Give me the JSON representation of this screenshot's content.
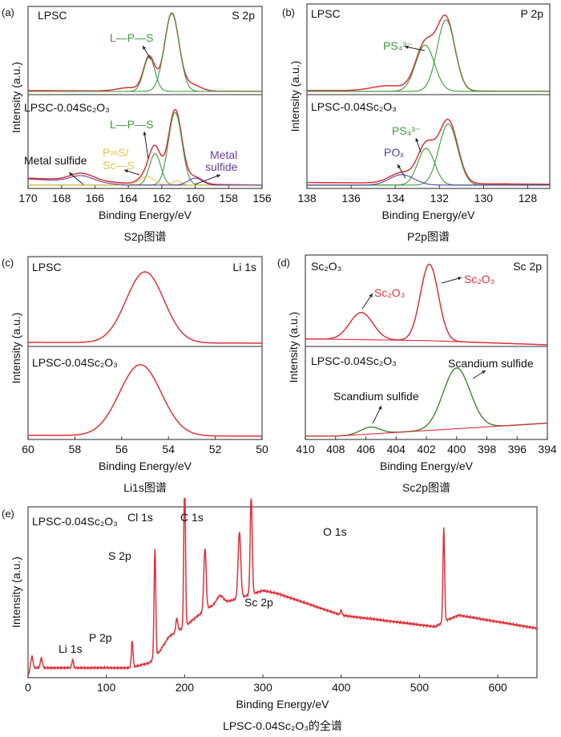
{
  "colors": {
    "fit": "#e0303a",
    "component": "#3d9a3d",
    "p_s": "#e3c54a",
    "metal_sulfide": "#6a3d9a",
    "pox": "#4a4aa0",
    "text": "#111111",
    "frame": "#555555"
  },
  "chart_data": [
    {
      "panel": "(a)",
      "type": "line",
      "xlabel": "Binding Energy/eV",
      "ylabel": "Intensity (a.u.)",
      "caption": "S2p图谱",
      "xlim": [
        170,
        156
      ],
      "xticks": [
        170,
        168,
        166,
        164,
        162,
        160,
        158,
        156
      ],
      "grid": false,
      "subplots": [
        {
          "sample": "LPSC",
          "region": "S 2p",
          "annotations": [
            {
              "text": "L—P—S",
              "color": "#3d9a3d"
            }
          ],
          "curves": [
            {
              "role": "envelope",
              "color": "#e0303a",
              "baseline": [
                [
                  170,
                  0.03
                ],
                [
                  156,
                  0.02
                ]
              ],
              "peaks": [
                [
                  161.4,
                  0.95,
                  1.0
                ],
                [
                  162.75,
                  0.42,
                  0.8
                ],
                [
                  160.2,
                  0.08,
                  1.2
                ],
                [
                  164,
                  0.04,
                  1.5
                ]
              ]
            },
            {
              "role": "component",
              "color": "#3d9a3d",
              "baseline": [
                [
                  170,
                  0.02
                ],
                [
                  156,
                  0.02
                ]
              ],
              "peaks": [
                [
                  161.4,
                  0.95,
                  1.05
                ]
              ]
            },
            {
              "role": "component",
              "color": "#3d9a3d",
              "baseline": [
                [
                  170,
                  0.02
                ],
                [
                  156,
                  0.02
                ]
              ],
              "peaks": [
                [
                  162.75,
                  0.42,
                  0.8
                ]
              ]
            }
          ]
        },
        {
          "sample": "LPSC-0.04Sc₂O₃",
          "region": "",
          "annotations": [
            {
              "text": "L—P—S",
              "color": "#3d9a3d"
            },
            {
              "text": "P═S/",
              "color": "#e3c54a"
            },
            {
              "text": "Sc—S",
              "color": "#e3c54a"
            },
            {
              "text": "Metal sulfide",
              "color": "#111111"
            },
            {
              "text": "Metal",
              "color": "#6a3d9a"
            },
            {
              "text": "sulfide",
              "color": "#6a3d9a"
            }
          ],
          "curves": [
            {
              "role": "envelope",
              "color": "#e0303a",
              "baseline": [
                [
                  170,
                  0.1
                ],
                [
                  166,
                  0.07
                ],
                [
                  164,
                  0.04
                ],
                [
                  156,
                  0.02
                ]
              ],
              "peaks": [
                [
                  161.2,
                  0.85,
                  0.95
                ],
                [
                  162.4,
                  0.38,
                  0.8
                ],
                [
                  162.9,
                  0.1,
                  1.0
                ],
                [
                  160,
                  0.08,
                  1.0
                ],
                [
                  166.8,
                  0.08,
                  1.6
                ]
              ]
            },
            {
              "role": "component",
              "color": "#3d9a3d",
              "baseline": [
                [
                  170,
                  0.02
                ],
                [
                  156,
                  0.02
                ]
              ],
              "peaks": [
                [
                  161.2,
                  0.83,
                  0.95
                ]
              ]
            },
            {
              "role": "component",
              "color": "#3d9a3d",
              "baseline": [
                [
                  170,
                  0.02
                ],
                [
                  156,
                  0.02
                ]
              ],
              "peaks": [
                [
                  162.4,
                  0.36,
                  0.8
                ]
              ]
            },
            {
              "role": "component",
              "color": "#e3c54a",
              "baseline": [
                [
                  170,
                  0.02
                ],
                [
                  156,
                  0.02
                ]
              ],
              "peaks": [
                [
                  162.9,
                  0.1,
                  1.0
                ],
                [
                  161.1,
                  0.05,
                  0.6
                ]
              ]
            },
            {
              "role": "component",
              "color": "#6a3d9a",
              "baseline": [
                [
                  170,
                  0.09
                ],
                [
                  166,
                  0.05
                ],
                [
                  164,
                  0.02
                ],
                [
                  156,
                  0.02
                ]
              ],
              "peaks": [
                [
                  160,
                  0.08,
                  1.0
                ],
                [
                  166.8,
                  0.07,
                  1.6
                ]
              ]
            }
          ]
        }
      ]
    },
    {
      "panel": "(b)",
      "type": "line",
      "xlabel": "Binding Energy/eV",
      "ylabel": "Intensity (a.u.)",
      "caption": "P2p图谱",
      "xlim": [
        138,
        127
      ],
      "xticks": [
        138,
        136,
        134,
        132,
        130,
        128
      ],
      "grid": false,
      "subplots": [
        {
          "sample": "LPSC",
          "region": "P 2p",
          "annotations": [
            {
              "text": "PS₄³⁻",
              "color": "#3d9a3d"
            }
          ],
          "curves": [
            {
              "role": "envelope",
              "color": "#e0303a",
              "baseline": [
                [
                  138,
                  0.03
                ],
                [
                  127,
                  0.02
                ]
              ],
              "peaks": [
                [
                  131.7,
                  0.85,
                  0.95
                ],
                [
                  132.65,
                  0.55,
                  1.0
                ],
                [
                  134.3,
                  0.06,
                  1.8
                ]
              ]
            },
            {
              "role": "component",
              "color": "#3d9a3d",
              "baseline": [
                [
                  138,
                  0.02
                ],
                [
                  127,
                  0.02
                ]
              ],
              "peaks": [
                [
                  131.7,
                  0.85,
                  0.95
                ]
              ]
            },
            {
              "role": "component",
              "color": "#3d9a3d",
              "baseline": [
                [
                  138,
                  0.02
                ],
                [
                  127,
                  0.02
                ]
              ],
              "peaks": [
                [
                  132.65,
                  0.55,
                  1.0
                ]
              ]
            }
          ]
        },
        {
          "sample": "LPSC-0.04Sc₂O₃",
          "region": "",
          "annotations": [
            {
              "text": "PS₄³⁻",
              "color": "#3d9a3d"
            },
            {
              "text": "POₓ",
              "color": "#4a4aa0"
            }
          ],
          "curves": [
            {
              "role": "envelope",
              "color": "#e0303a",
              "baseline": [
                [
                  138,
                  0.05
                ],
                [
                  127,
                  0.03
                ]
              ],
              "peaks": [
                [
                  131.6,
                  0.72,
                  1.0
                ],
                [
                  132.6,
                  0.42,
                  0.9
                ],
                [
                  133.7,
                  0.12,
                  1.3
                ]
              ]
            },
            {
              "role": "component",
              "color": "#3d9a3d",
              "baseline": [
                [
                  138,
                  0.02
                ],
                [
                  127,
                  0.02
                ]
              ],
              "peaks": [
                [
                  131.6,
                  0.7,
                  1.0
                ]
              ]
            },
            {
              "role": "component",
              "color": "#3d9a3d",
              "baseline": [
                [
                  138,
                  0.02
                ],
                [
                  127,
                  0.02
                ]
              ],
              "peaks": [
                [
                  132.6,
                  0.42,
                  0.9
                ]
              ]
            },
            {
              "role": "component",
              "color": "#4a4aa0",
              "baseline": [
                [
                  138,
                  0.02
                ],
                [
                  127,
                  0.02
                ]
              ],
              "peaks": [
                [
                  133.7,
                  0.12,
                  1.3
                ]
              ]
            }
          ]
        }
      ]
    },
    {
      "panel": "(c)",
      "type": "line",
      "xlabel": "Binding Energy/eV",
      "ylabel": "Intensity (a.u.)",
      "caption": "Li1s图谱",
      "xlim": [
        60,
        50
      ],
      "xticks": [
        60,
        58,
        56,
        54,
        52,
        50
      ],
      "grid": false,
      "subplots": [
        {
          "sample": "LPSC",
          "region": "Li 1s",
          "annotations": [],
          "curves": [
            {
              "role": "envelope",
              "color": "#e0303a",
              "baseline": [
                [
                  60,
                  0.03
                ],
                [
                  50,
                  0.02
                ]
              ],
              "peaks": [
                [
                  55.0,
                  0.85,
                  1.9
                ]
              ]
            }
          ]
        },
        {
          "sample": "LPSC-0.04Sc₂O₃",
          "region": "",
          "annotations": [],
          "curves": [
            {
              "role": "envelope",
              "color": "#e0303a",
              "baseline": [
                [
                  60,
                  0.03
                ],
                [
                  50,
                  0.02
                ]
              ],
              "peaks": [
                [
                  55.2,
                  0.82,
                  2.1
                ]
              ]
            }
          ]
        }
      ]
    },
    {
      "panel": "(d)",
      "type": "line",
      "xlabel": "Binding Energy/eV",
      "ylabel": "Intensity (a.u.)",
      "caption": "Sc2p图谱",
      "xlim": [
        410,
        394
      ],
      "xticks": [
        410,
        408,
        406,
        404,
        402,
        400,
        398,
        396,
        394
      ],
      "grid": false,
      "subplots": [
        {
          "sample": "Sc₂O₃",
          "region": "Sc 2p",
          "annotations": [
            {
              "text": "Sc₂O₃",
              "color": "#e0303a"
            },
            {
              "text": "Sc₂O₃",
              "color": "#e0303a"
            }
          ],
          "curves": [
            {
              "role": "envelope",
              "color": "#e0303a",
              "baseline": [
                [
                  410,
                  0.07
                ],
                [
                  402,
                  0.05
                ],
                [
                  394,
                  0.0
                ]
              ],
              "peaks": [
                [
                  401.8,
                  0.9,
                  1.4
                ],
                [
                  406.3,
                  0.32,
                  1.8
                ]
              ]
            },
            {
              "role": "background",
              "color": "#e0303a",
              "baseline": [
                [
                  410,
                  0.07
                ],
                [
                  402,
                  0.05
                ],
                [
                  394,
                  0.0
                ]
              ],
              "peaks": []
            }
          ]
        },
        {
          "sample": "LPSC-0.04Sc₂O₃",
          "region": "",
          "annotations": [
            {
              "text": "Scandium sulfide",
              "color": "#111111"
            },
            {
              "text": "Scandium sulfide",
              "color": "#111111"
            }
          ],
          "curves": [
            {
              "role": "envelope",
              "color": "#4f8a3c",
              "baseline": [
                [
                  408,
                  0.02
                ],
                [
                  394,
                  0.17
                ]
              ],
              "peaks": [
                [
                  400.0,
                  0.7,
                  2.1
                ],
                [
                  405.7,
                  0.08,
                  1.5
                ]
              ]
            },
            {
              "role": "background",
              "color": "#e0303a",
              "baseline": [
                [
                  408,
                  0.02
                ],
                [
                  394,
                  0.17
                ]
              ],
              "peaks": []
            }
          ]
        }
      ]
    },
    {
      "panel": "(e)",
      "type": "line",
      "xlabel": "Binding Energy/eV",
      "ylabel": "Intensity (a.u.)",
      "caption": "LPSC-0.04Sc₂O₃的全谱",
      "xlim": [
        0,
        650
      ],
      "xticks": [
        0,
        100,
        200,
        300,
        400,
        500,
        600
      ],
      "grid": false,
      "subplots": [
        {
          "sample": "LPSC-0.04Sc₂O₃",
          "region": "",
          "annotations": [
            {
              "text": "Li 1s",
              "color": "#111111"
            },
            {
              "text": "P 2p",
              "color": "#111111"
            },
            {
              "text": "S 2p",
              "color": "#111111"
            },
            {
              "text": "Cl 1s",
              "color": "#111111"
            },
            {
              "text": "C 1s",
              "color": "#111111"
            },
            {
              "text": "Sc 2p",
              "color": "#111111"
            },
            {
              "text": "O 1s",
              "color": "#111111"
            }
          ],
          "curves": [
            {
              "role": "survey",
              "color": "#e0303a",
              "baseline": [
                [
                  0,
                  0.0
                ],
                [
                  3,
                  0.05
                ],
                [
                  130,
                  0.05
                ],
                [
                  155,
                  0.08
                ],
                [
                  168,
                  0.15
                ],
                [
                  180,
                  0.24
                ],
                [
                  200,
                  0.3
                ],
                [
                  215,
                  0.36
                ],
                [
                  232,
                  0.42
                ],
                [
                  260,
                  0.46
                ],
                [
                  300,
                  0.52
                ],
                [
                  320,
                  0.5
                ],
                [
                  400,
                  0.37
                ],
                [
                  520,
                  0.3
                ],
                [
                  535,
                  0.34
                ],
                [
                  550,
                  0.37
                ],
                [
                  650,
                  0.29
                ]
              ],
              "peaks": [
                [
                  5,
                  0.07,
                  3
                ],
                [
                  17,
                  0.06,
                  3
                ],
                [
                  57,
                  0.05,
                  2.5
                ],
                [
                  133,
                  0.16,
                  2.5
                ],
                [
                  162,
                  0.66,
                  2.5
                ],
                [
                  190,
                  0.08,
                  3
                ],
                [
                  200,
                  0.92,
                  2.5
                ],
                [
                  226,
                  0.38,
                  3.5
                ],
                [
                  245,
                  0.05,
                  10
                ],
                [
                  270,
                  0.4,
                  4
                ],
                [
                  285,
                  0.6,
                  3
                ],
                [
                  400,
                  0.03,
                  2.5
                ],
                [
                  531,
                  0.58,
                  2.5
                ]
              ]
            }
          ]
        }
      ]
    }
  ]
}
